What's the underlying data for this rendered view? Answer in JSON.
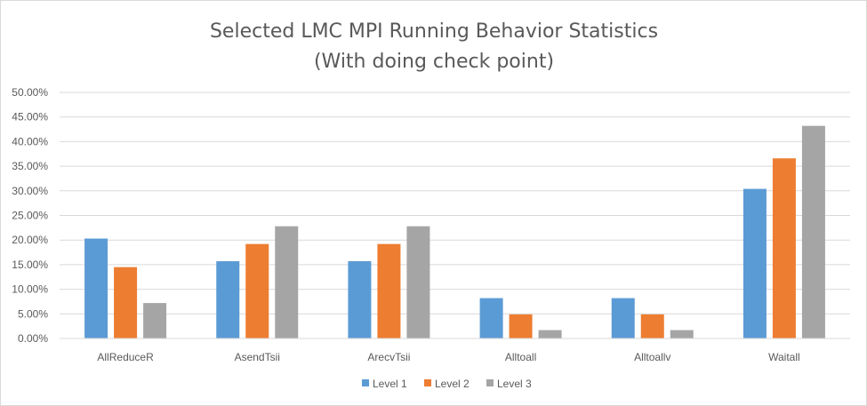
{
  "chart_data": {
    "type": "bar",
    "title_lines": [
      "Selected LMC MPI Running Behavior Statistics",
      "(With doing check point)"
    ],
    "categories": [
      "AllReduceR",
      "AsendTsii",
      "ArecvTsii",
      "Alltoall",
      "Alltoallv",
      "Waitall"
    ],
    "series": [
      {
        "name": "Level 1",
        "color": "#5b9bd5",
        "values": [
          20.3,
          15.7,
          15.7,
          8.2,
          8.2,
          30.4
        ]
      },
      {
        "name": "Level 2",
        "color": "#ed7d31",
        "values": [
          14.5,
          19.2,
          19.2,
          4.9,
          4.9,
          36.6
        ]
      },
      {
        "name": "Level 3",
        "color": "#a5a5a5",
        "values": [
          7.2,
          22.8,
          22.8,
          1.7,
          1.7,
          43.2
        ]
      }
    ],
    "y_ticks": [
      "0.00%",
      "5.00%",
      "10.00%",
      "15.00%",
      "20.00%",
      "25.00%",
      "30.00%",
      "35.00%",
      "40.00%",
      "45.00%",
      "50.00%"
    ],
    "ylim": [
      0,
      50
    ],
    "y_unit": "percent",
    "grid": true,
    "legend_position": "bottom"
  }
}
